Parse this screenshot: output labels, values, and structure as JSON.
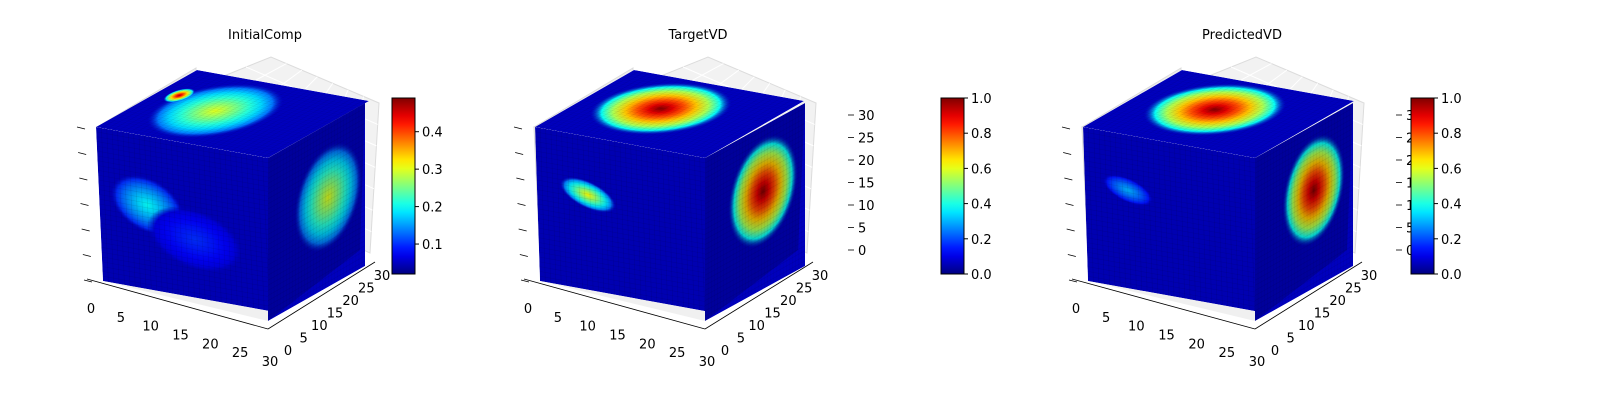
{
  "chart_data": [
    {
      "type": "heatmap",
      "title": "InitialComp",
      "x_ticks": [
        "0",
        "5",
        "10",
        "15",
        "20",
        "25",
        "30"
      ],
      "y_ticks": [
        "0",
        "5",
        "10",
        "15",
        "20",
        "25",
        "30"
      ],
      "z_ticks": [],
      "colormap": "jet",
      "colorbar": {
        "min": 0.02,
        "max": 0.49,
        "ticks": [
          "0.1",
          "0.2",
          "0.3",
          "0.4"
        ],
        "tick_values": [
          0.1,
          0.2,
          0.3,
          0.4
        ]
      },
      "blobs": {
        "front": [
          {
            "cx": 0.28,
            "cy": 0.45,
            "rx": 0.22,
            "ry": 0.18,
            "v": 0.2,
            "rot": 25
          },
          {
            "cx": 0.55,
            "cy": 0.62,
            "rx": 0.28,
            "ry": 0.2,
            "v": 0.1,
            "rot": 10
          }
        ],
        "top": [
          {
            "cx": 0.4,
            "cy": 0.5,
            "rx": 0.3,
            "ry": 0.45,
            "v": 0.3,
            "rot": 0
          },
          {
            "cx": 0.12,
            "cy": 0.62,
            "rx": 0.06,
            "ry": 0.12,
            "v": 0.47,
            "rot": 0
          }
        ],
        "side": [
          {
            "cx": 0.62,
            "cy": 0.45,
            "rx": 0.35,
            "ry": 0.32,
            "v": 0.3,
            "rot": 0
          }
        ]
      }
    },
    {
      "type": "heatmap",
      "title": "TargetVD",
      "x_ticks": [
        "0",
        "5",
        "10",
        "15",
        "20",
        "25",
        "30"
      ],
      "y_ticks": [
        "0",
        "5",
        "10",
        "15",
        "20",
        "25",
        "30"
      ],
      "z_ticks": [
        "0",
        "5",
        "10",
        "15",
        "20",
        "25",
        "30"
      ],
      "colormap": "jet",
      "colorbar": {
        "min": 0.0,
        "max": 1.0,
        "ticks": [
          "0.0",
          "0.2",
          "0.4",
          "0.6",
          "0.8",
          "1.0"
        ],
        "tick_values": [
          0,
          0.2,
          0.4,
          0.6,
          0.8,
          1.0
        ]
      },
      "blobs": {
        "front": [
          {
            "cx": 0.3,
            "cy": 0.38,
            "rx": 0.17,
            "ry": 0.09,
            "v": 0.62,
            "rot": 18
          }
        ],
        "top": [
          {
            "cx": 0.42,
            "cy": 0.55,
            "rx": 0.34,
            "ry": 0.42,
            "v": 1.0,
            "rot": 0
          }
        ],
        "side": [
          {
            "cx": 0.58,
            "cy": 0.4,
            "rx": 0.35,
            "ry": 0.33,
            "v": 1.0,
            "rot": 0
          }
        ]
      }
    },
    {
      "type": "heatmap",
      "title": "PredictedVD",
      "x_ticks": [
        "0",
        "5",
        "10",
        "15",
        "20",
        "25",
        "30"
      ],
      "y_ticks": [
        "0",
        "5",
        "10",
        "15",
        "20",
        "25",
        "30"
      ],
      "z_ticks": [
        "0",
        "5",
        "10",
        "15",
        "20",
        "25",
        "30"
      ],
      "colormap": "jet",
      "colorbar": {
        "min": 0.0,
        "max": 1.0,
        "ticks": [
          "0.0",
          "0.2",
          "0.4",
          "0.6",
          "0.8",
          "1.0"
        ],
        "tick_values": [
          0,
          0.2,
          0.4,
          0.6,
          0.8,
          1.0
        ]
      },
      "blobs": {
        "front": [
          {
            "cx": 0.25,
            "cy": 0.36,
            "rx": 0.15,
            "ry": 0.08,
            "v": 0.3,
            "rot": 18
          }
        ],
        "top": [
          {
            "cx": 0.45,
            "cy": 0.55,
            "rx": 0.34,
            "ry": 0.42,
            "v": 1.0,
            "rot": 0
          }
        ],
        "side": [
          {
            "cx": 0.6,
            "cy": 0.4,
            "rx": 0.32,
            "ry": 0.33,
            "v": 1.0,
            "rot": 0
          }
        ]
      }
    }
  ]
}
